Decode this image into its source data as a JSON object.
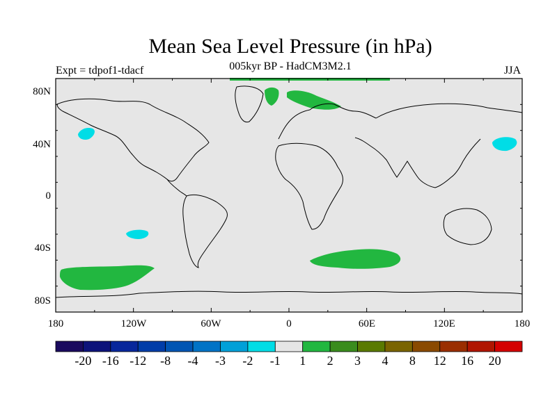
{
  "title": "Mean Sea Level Pressure (in hPa)",
  "subtitle": "005kyr BP - HadCM3M2.1",
  "expt_label": "Expt = tdpof1-tdacf",
  "season": "JJA",
  "y_ticks": [
    "80N",
    "40N",
    "0",
    "40S",
    "80S"
  ],
  "x_ticks": [
    "180",
    "120W",
    "60W",
    "0",
    "60E",
    "120E",
    "180"
  ],
  "colorbar": {
    "colors": [
      "#1a0a5e",
      "#0d137a",
      "#08279b",
      "#003da8",
      "#0055b3",
      "#0073c6",
      "#00a0d8",
      "#00dde6",
      "#e6e6e6",
      "#22b740",
      "#3a8c1d",
      "#5a7a00",
      "#7a6400",
      "#8a4a00",
      "#9a2e00",
      "#b01500",
      "#d40000"
    ],
    "labels": [
      "-20",
      "-16",
      "-12",
      "-8",
      "-4",
      "-3",
      "-2",
      "-1",
      "1",
      "2",
      "3",
      "4",
      "8",
      "12",
      "16",
      "20"
    ]
  },
  "colors": {
    "land_ocean_background": "#e6e6e6",
    "positive_anomaly": "#22b740",
    "negative_anomaly": "#00dde6",
    "coastline": "#000000"
  }
}
